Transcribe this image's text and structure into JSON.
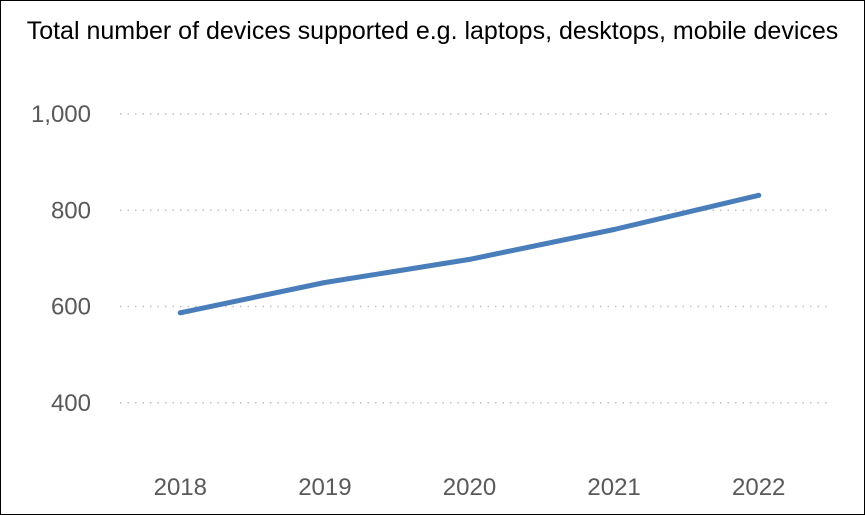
{
  "chart_data": {
    "type": "line",
    "title": "Total number of devices supported e.g. laptops, desktops, mobile devices",
    "categories": [
      "2018",
      "2019",
      "2020",
      "2021",
      "2022"
    ],
    "series": [
      {
        "values": [
          587,
          650,
          698,
          760,
          831
        ]
      }
    ],
    "yticks": [
      400,
      600,
      800,
      1000
    ],
    "ytick_labels": [
      "400",
      "600",
      "800",
      "1,000"
    ],
    "ylim": [
      250,
      1000
    ],
    "xlabel": "",
    "ylabel": "",
    "grid": true,
    "legend": "none"
  },
  "colors": {
    "series": "#4a7ebb",
    "grid": "#bfbfbf",
    "text": "#595959"
  }
}
